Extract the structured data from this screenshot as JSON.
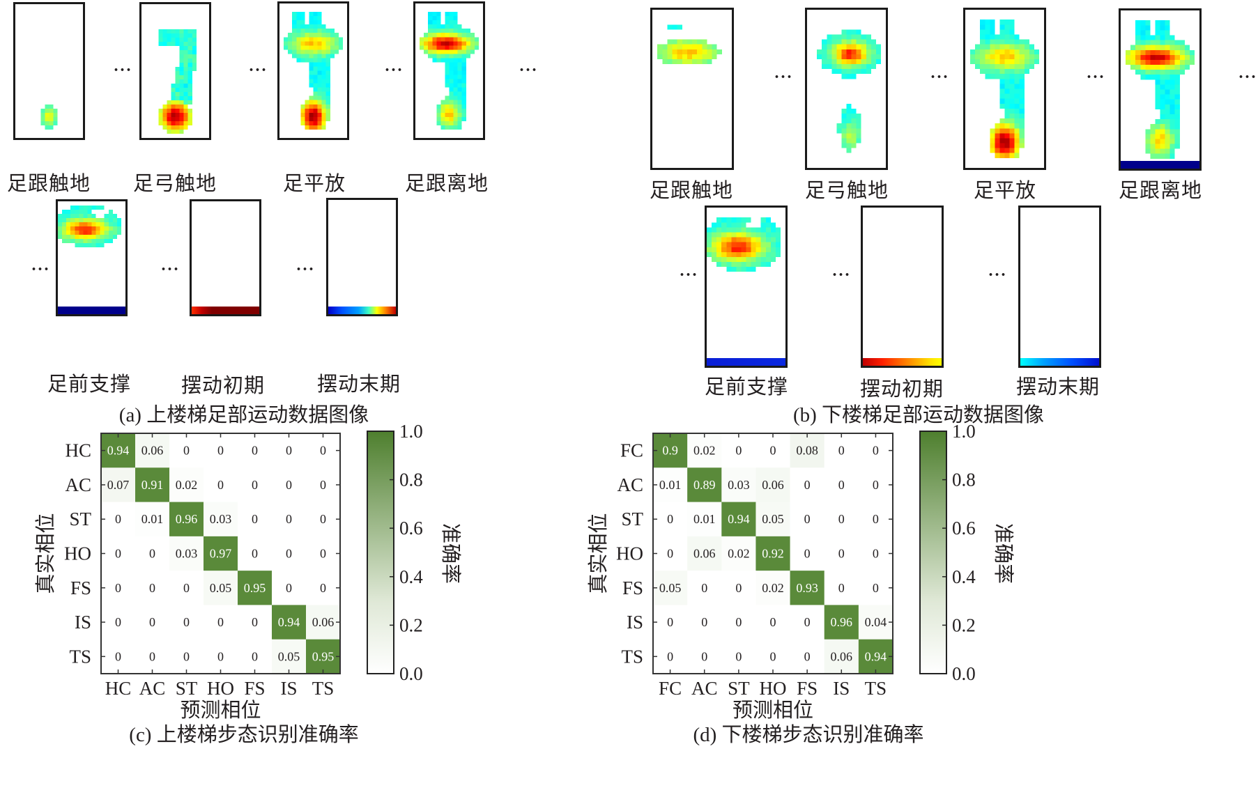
{
  "panels": {
    "a": {
      "caption": "(a) 上楼梯足部运动数据图像",
      "frames": [
        {
          "label": "足跟触地",
          "pattern": "heel_small",
          "bar": null
        },
        {
          "label": "足弓触地",
          "pattern": "arch",
          "bar": null
        },
        {
          "label": "足平放",
          "pattern": "flat",
          "bar": null
        },
        {
          "label": "足跟离地",
          "pattern": "heel_off",
          "bar": null
        },
        {
          "label": "足前支撑",
          "pattern": "forefoot",
          "bar": "navy"
        },
        {
          "label": "摆动初期",
          "pattern": "empty",
          "bar": "red_dark"
        },
        {
          "label": "摆动末期",
          "pattern": "empty",
          "bar": "jet_full"
        }
      ]
    },
    "b": {
      "caption": "(b) 下楼梯足部运动数据图像",
      "frames": [
        {
          "label": "足跟触地",
          "pattern": "fore_small",
          "bar": null
        },
        {
          "label": "足弓触地",
          "pattern": "arch_down",
          "bar": null
        },
        {
          "label": "足平放",
          "pattern": "flat",
          "bar": null
        },
        {
          "label": "足跟离地",
          "pattern": "heel_off",
          "bar": "navy"
        },
        {
          "label": "足前支撑",
          "pattern": "forefoot",
          "bar": "blue"
        },
        {
          "label": "摆动初期",
          "pattern": "empty",
          "bar": "red_yellow"
        },
        {
          "label": "摆动末期",
          "pattern": "empty",
          "bar": "cyan_blue"
        }
      ]
    }
  },
  "ellipsis": "···",
  "chart_data": [
    {
      "type": "heatmap",
      "title": "(c) 上楼梯步态识别准确率",
      "xlabel": "预测相位",
      "ylabel": "真实相位",
      "x_categories": [
        "HC",
        "AC",
        "ST",
        "HO",
        "FS",
        "IS",
        "TS"
      ],
      "y_categories": [
        "HC",
        "AC",
        "ST",
        "HO",
        "FS",
        "IS",
        "TS"
      ],
      "values": [
        [
          0.94,
          0.06,
          0,
          0,
          0,
          0,
          0
        ],
        [
          0.07,
          0.91,
          0.02,
          0,
          0,
          0,
          0
        ],
        [
          0,
          0.01,
          0.96,
          0.03,
          0,
          0,
          0
        ],
        [
          0,
          0,
          0.03,
          0.97,
          0,
          0,
          0
        ],
        [
          0,
          0,
          0,
          0.05,
          0.95,
          0,
          0
        ],
        [
          0,
          0,
          0,
          0,
          0,
          0.94,
          0.06
        ],
        [
          0,
          0,
          0,
          0,
          0,
          0.05,
          0.95
        ]
      ],
      "colorbar": {
        "label": "准确率",
        "range": [
          0.0,
          1.0
        ],
        "ticks": [
          "0.0",
          "0.2",
          "0.4",
          "0.6",
          "0.8",
          "1.0"
        ],
        "low_color": "#ffffff",
        "high_color": "#4e7f2e"
      }
    },
    {
      "type": "heatmap",
      "title": "(d) 下楼梯步态识别准确率",
      "xlabel": "预测相位",
      "ylabel": "真实相位",
      "x_categories": [
        "FC",
        "AC",
        "ST",
        "HO",
        "FS",
        "IS",
        "TS"
      ],
      "y_categories": [
        "FC",
        "AC",
        "ST",
        "HO",
        "FS",
        "IS",
        "TS"
      ],
      "values": [
        [
          0.9,
          0.02,
          0,
          0,
          0.08,
          0,
          0
        ],
        [
          0.01,
          0.89,
          0.03,
          0.06,
          0,
          0,
          0
        ],
        [
          0,
          0.01,
          0.94,
          0.05,
          0,
          0,
          0
        ],
        [
          0,
          0.06,
          0.02,
          0.92,
          0,
          0,
          0
        ],
        [
          0.05,
          0,
          0,
          0.02,
          0.93,
          0,
          0
        ],
        [
          0,
          0,
          0,
          0,
          0,
          0.96,
          0.04
        ],
        [
          0,
          0,
          0,
          0,
          0,
          0.06,
          0.94
        ]
      ],
      "colorbar": {
        "label": "准确率",
        "range": [
          0.0,
          1.0
        ],
        "ticks": [
          "0.0",
          "0.2",
          "0.4",
          "0.6",
          "0.8",
          "1.0"
        ],
        "low_color": "#ffffff",
        "high_color": "#4e7f2e"
      }
    }
  ]
}
